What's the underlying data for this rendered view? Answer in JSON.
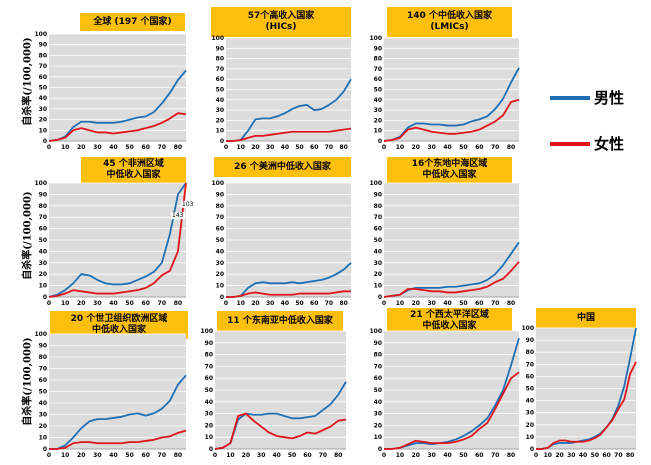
{
  "ylabels": [
    "自杀率(/100,000)",
    "自杀率(/100,000)",
    "自杀率(/100,000)"
  ],
  "legend": [
    {
      "label": "男性",
      "color": "#1f6fb4"
    },
    {
      "label": "女性",
      "color": "#e0151b"
    }
  ],
  "chart_data": [
    {
      "id": "global",
      "type": "line",
      "title_lines": [
        "全球 (197 个国家)"
      ],
      "x": [
        0,
        5,
        10,
        15,
        20,
        25,
        30,
        35,
        40,
        45,
        50,
        55,
        60,
        65,
        70,
        75,
        80,
        85
      ],
      "xticks": [
        0,
        10,
        20,
        30,
        40,
        50,
        60,
        70,
        80
      ],
      "ylim": [
        0,
        100
      ],
      "yticks": [
        0,
        10,
        20,
        30,
        40,
        50,
        60,
        70,
        80,
        90,
        100
      ],
      "series": [
        {
          "name": "男性",
          "values": [
            0,
            1,
            4,
            13,
            18,
            18,
            17,
            17,
            17,
            18,
            20,
            22,
            23,
            27,
            35,
            45,
            57,
            66
          ]
        },
        {
          "name": "女性",
          "values": [
            0,
            1,
            3,
            10,
            12,
            10,
            8,
            8,
            7,
            8,
            9,
            10,
            12,
            14,
            17,
            21,
            26,
            25
          ]
        }
      ]
    },
    {
      "id": "hic",
      "type": "line",
      "title_lines": [
        "57个高收入国家",
        "(HICs)"
      ],
      "x": [
        0,
        5,
        10,
        15,
        20,
        25,
        30,
        35,
        40,
        45,
        50,
        55,
        60,
        65,
        70,
        75,
        80,
        85
      ],
      "xticks": [
        0,
        10,
        20,
        30,
        40,
        50,
        60,
        70,
        80
      ],
      "ylim": [
        0,
        100
      ],
      "yticks": [
        0,
        10,
        20,
        30,
        40,
        50,
        60,
        70,
        80,
        90,
        100
      ],
      "series": [
        {
          "name": "男性",
          "values": [
            0,
            0,
            1,
            10,
            21,
            22,
            22,
            24,
            27,
            31,
            34,
            35,
            30,
            31,
            35,
            40,
            48,
            60
          ]
        },
        {
          "name": "女性",
          "values": [
            0,
            0,
            1,
            3,
            5,
            5,
            6,
            7,
            8,
            9,
            9,
            9,
            9,
            9,
            9,
            10,
            11,
            12
          ]
        }
      ]
    },
    {
      "id": "lmic",
      "type": "line",
      "title_lines": [
        "140 个中低收入国家",
        "(LMICs)"
      ],
      "x": [
        0,
        5,
        10,
        15,
        20,
        25,
        30,
        35,
        40,
        45,
        50,
        55,
        60,
        65,
        70,
        75,
        80,
        85
      ],
      "xticks": [
        0,
        10,
        20,
        30,
        40,
        50,
        60,
        70,
        80
      ],
      "ylim": [
        0,
        100
      ],
      "yticks": [
        0,
        10,
        20,
        30,
        40,
        50,
        60,
        70,
        80,
        90,
        100
      ],
      "series": [
        {
          "name": "男性",
          "values": [
            0,
            1,
            4,
            13,
            17,
            17,
            16,
            16,
            15,
            15,
            16,
            19,
            21,
            24,
            31,
            41,
            57,
            71
          ]
        },
        {
          "name": "女性",
          "values": [
            0,
            1,
            3,
            11,
            13,
            11,
            9,
            8,
            7,
            7,
            8,
            9,
            11,
            15,
            19,
            25,
            38,
            40
          ]
        }
      ]
    },
    {
      "id": "africa",
      "type": "line",
      "title_lines": [
        "45 个非洲区域",
        "中低收入国家"
      ],
      "x": [
        0,
        5,
        10,
        15,
        20,
        25,
        30,
        35,
        40,
        45,
        50,
        55,
        60,
        65,
        70,
        75,
        80,
        85
      ],
      "xticks": [
        0,
        10,
        20,
        30,
        40,
        50,
        60,
        70,
        80
      ],
      "ylim": [
        0,
        100
      ],
      "yticks": [
        0,
        10,
        20,
        30,
        40,
        50,
        60,
        70,
        80,
        90,
        100
      ],
      "data_labels": [
        "143",
        "103"
      ],
      "series": [
        {
          "name": "男性",
          "values": [
            0,
            2,
            6,
            12,
            20,
            19,
            15,
            12,
            11,
            11,
            12,
            15,
            18,
            22,
            30,
            55,
            90,
            100
          ]
        },
        {
          "name": "女性",
          "values": [
            0,
            1,
            3,
            6,
            5,
            4,
            3,
            3,
            3,
            4,
            5,
            6,
            8,
            12,
            19,
            23,
            40,
            100
          ]
        }
      ]
    },
    {
      "id": "americas",
      "type": "line",
      "title_lines": [
        "26 个美洲中低收入国家"
      ],
      "x": [
        0,
        5,
        10,
        15,
        20,
        25,
        30,
        35,
        40,
        45,
        50,
        55,
        60,
        65,
        70,
        75,
        80,
        85
      ],
      "xticks": [
        0,
        10,
        20,
        30,
        40,
        50,
        60,
        70,
        80
      ],
      "ylim": [
        0,
        100
      ],
      "yticks": [
        0,
        10,
        20,
        30,
        40,
        50,
        60,
        70,
        80,
        90,
        100
      ],
      "series": [
        {
          "name": "男性",
          "values": [
            0,
            0,
            1,
            8,
            12,
            13,
            12,
            12,
            12,
            13,
            12,
            13,
            14,
            15,
            17,
            20,
            24,
            30
          ]
        },
        {
          "name": "女性",
          "values": [
            0,
            0,
            1,
            3,
            4,
            3,
            2,
            2,
            2,
            2,
            3,
            3,
            3,
            3,
            3,
            4,
            5,
            5
          ]
        }
      ]
    },
    {
      "id": "emr",
      "type": "line",
      "title_lines": [
        "16个东地中海区域",
        "中低收入国家"
      ],
      "x": [
        0,
        5,
        10,
        15,
        20,
        25,
        30,
        35,
        40,
        45,
        50,
        55,
        60,
        65,
        70,
        75,
        80,
        85
      ],
      "xticks": [
        0,
        10,
        20,
        30,
        40,
        50,
        60,
        70,
        80
      ],
      "ylim": [
        0,
        100
      ],
      "yticks": [
        0,
        10,
        20,
        30,
        40,
        50,
        60,
        70,
        80,
        90,
        100
      ],
      "series": [
        {
          "name": "男性",
          "values": [
            0,
            1,
            2,
            6,
            8,
            8,
            8,
            8,
            9,
            9,
            10,
            11,
            12,
            15,
            20,
            28,
            38,
            48
          ]
        },
        {
          "name": "女性",
          "values": [
            0,
            1,
            2,
            7,
            7,
            6,
            5,
            5,
            4,
            4,
            5,
            6,
            7,
            9,
            13,
            16,
            23,
            31
          ]
        }
      ]
    },
    {
      "id": "europe",
      "type": "line",
      "title_lines": [
        "20 个世卫组织欧洲区域",
        "中低收入国家"
      ],
      "x": [
        0,
        5,
        10,
        15,
        20,
        25,
        30,
        35,
        40,
        45,
        50,
        55,
        60,
        65,
        70,
        75,
        80,
        85
      ],
      "xticks": [
        0,
        10,
        20,
        30,
        40,
        50,
        60,
        70,
        80
      ],
      "ylim": [
        0,
        100
      ],
      "yticks": [
        0,
        10,
        20,
        30,
        40,
        50,
        60,
        70,
        80,
        90,
        100
      ],
      "series": [
        {
          "name": "男性",
          "values": [
            0,
            0,
            3,
            10,
            18,
            24,
            26,
            26,
            27,
            28,
            30,
            31,
            29,
            31,
            35,
            42,
            56,
            64
          ]
        },
        {
          "name": "女性",
          "values": [
            0,
            0,
            1,
            5,
            6,
            6,
            5,
            5,
            5,
            5,
            6,
            6,
            7,
            8,
            10,
            11,
            14,
            16
          ]
        }
      ]
    },
    {
      "id": "sear",
      "type": "line",
      "title_lines": [
        "11 个东南亚中低收入国家"
      ],
      "x": [
        0,
        5,
        10,
        15,
        20,
        25,
        30,
        35,
        40,
        45,
        50,
        55,
        60,
        65,
        70,
        75,
        80,
        85
      ],
      "xticks": [
        0,
        10,
        20,
        30,
        40,
        50,
        60,
        70,
        80
      ],
      "ylim": [
        0,
        100
      ],
      "yticks": [
        0,
        10,
        20,
        30,
        40,
        50,
        60,
        70,
        80,
        90,
        100
      ],
      "series": [
        {
          "name": "男性",
          "values": [
            0,
            1,
            5,
            25,
            30,
            29,
            29,
            30,
            30,
            28,
            26,
            26,
            27,
            28,
            33,
            38,
            46,
            57
          ]
        },
        {
          "name": "女性",
          "values": [
            0,
            1,
            5,
            28,
            30,
            24,
            19,
            14,
            11,
            10,
            9,
            11,
            14,
            13,
            16,
            19,
            24,
            25
          ]
        }
      ]
    },
    {
      "id": "wpr",
      "type": "line",
      "title_lines": [
        "21 个西太平洋区域",
        "中低收入国家"
      ],
      "x": [
        0,
        5,
        10,
        15,
        20,
        25,
        30,
        35,
        40,
        45,
        50,
        55,
        60,
        65,
        70,
        75,
        80,
        85
      ],
      "xticks": [
        0,
        10,
        20,
        30,
        40,
        50,
        60,
        70,
        80
      ],
      "ylim": [
        0,
        100
      ],
      "yticks": [
        0,
        10,
        20,
        30,
        40,
        50,
        60,
        70,
        80,
        90,
        100
      ],
      "series": [
        {
          "name": "男性",
          "values": [
            0,
            0,
            1,
            3,
            5,
            5,
            4,
            5,
            6,
            8,
            11,
            15,
            20,
            26,
            37,
            50,
            71,
            94
          ]
        },
        {
          "name": "女性",
          "values": [
            0,
            0,
            1,
            4,
            7,
            6,
            5,
            5,
            5,
            6,
            8,
            11,
            17,
            22,
            34,
            47,
            60,
            65
          ]
        }
      ]
    },
    {
      "id": "china",
      "type": "line",
      "title_lines": [
        "中国"
      ],
      "x": [
        0,
        5,
        10,
        15,
        20,
        25,
        30,
        35,
        40,
        45,
        50,
        55,
        60,
        65,
        70,
        75,
        80,
        85
      ],
      "xticks": [
        0,
        10,
        20,
        30,
        40,
        50,
        60,
        70,
        80
      ],
      "ylim": [
        0,
        100
      ],
      "yticks": [
        0,
        10,
        20,
        30,
        40,
        50,
        60,
        70,
        80,
        90,
        100
      ],
      "series": [
        {
          "name": "男性",
          "values": [
            0,
            0,
            1,
            4,
            5,
            5,
            5,
            6,
            7,
            8,
            10,
            13,
            18,
            25,
            36,
            52,
            75,
            100
          ]
        },
        {
          "name": "女性",
          "values": [
            0,
            0,
            1,
            5,
            7,
            7,
            6,
            6,
            6,
            7,
            9,
            12,
            18,
            24,
            33,
            41,
            62,
            72
          ]
        }
      ]
    }
  ]
}
